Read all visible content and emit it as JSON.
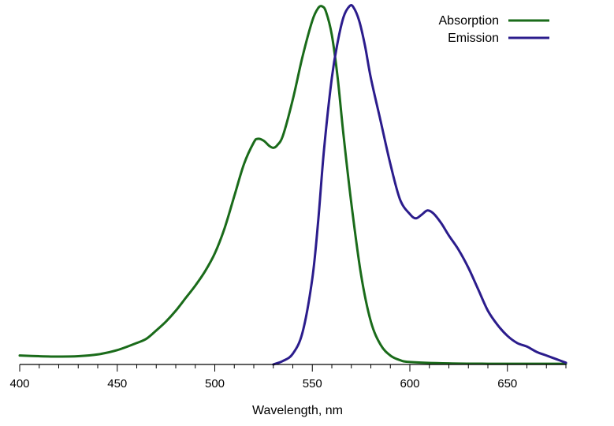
{
  "chart_data": {
    "type": "line",
    "title": "",
    "xlabel": "Wavelength, nm",
    "ylabel": "",
    "xlim": [
      400,
      680
    ],
    "ylim": [
      0,
      1
    ],
    "x_ticks": [
      400,
      450,
      500,
      550,
      600,
      650
    ],
    "x_minor_step": 10,
    "y_axis_visible": false,
    "grid": false,
    "legend_position": "top-right",
    "series": [
      {
        "name": "Absorption",
        "color": "#1a6b1a",
        "points": [
          [
            400,
            0.025
          ],
          [
            410,
            0.023
          ],
          [
            420,
            0.022
          ],
          [
            430,
            0.023
          ],
          [
            440,
            0.028
          ],
          [
            450,
            0.04
          ],
          [
            460,
            0.06
          ],
          [
            465,
            0.072
          ],
          [
            470,
            0.095
          ],
          [
            475,
            0.12
          ],
          [
            480,
            0.15
          ],
          [
            485,
            0.185
          ],
          [
            490,
            0.22
          ],
          [
            495,
            0.26
          ],
          [
            500,
            0.31
          ],
          [
            505,
            0.38
          ],
          [
            510,
            0.47
          ],
          [
            515,
            0.56
          ],
          [
            520,
            0.62
          ],
          [
            522,
            0.63
          ],
          [
            525,
            0.625
          ],
          [
            528,
            0.61
          ],
          [
            530,
            0.605
          ],
          [
            532,
            0.612
          ],
          [
            535,
            0.64
          ],
          [
            540,
            0.74
          ],
          [
            545,
            0.86
          ],
          [
            550,
            0.96
          ],
          [
            553,
            0.995
          ],
          [
            555,
            1.0
          ],
          [
            557,
            0.985
          ],
          [
            560,
            0.92
          ],
          [
            563,
            0.8
          ],
          [
            566,
            0.64
          ],
          [
            570,
            0.45
          ],
          [
            575,
            0.25
          ],
          [
            580,
            0.12
          ],
          [
            585,
            0.055
          ],
          [
            590,
            0.025
          ],
          [
            595,
            0.012
          ],
          [
            600,
            0.007
          ],
          [
            620,
            0.003
          ],
          [
            640,
            0.002
          ],
          [
            660,
            0.002
          ],
          [
            680,
            0.002
          ]
        ]
      },
      {
        "name": "Emission",
        "color": "#2b1c8c",
        "points": [
          [
            530,
            0.0
          ],
          [
            535,
            0.01
          ],
          [
            540,
            0.03
          ],
          [
            545,
            0.09
          ],
          [
            550,
            0.24
          ],
          [
            553,
            0.4
          ],
          [
            556,
            0.6
          ],
          [
            560,
            0.8
          ],
          [
            563,
            0.9
          ],
          [
            566,
            0.97
          ],
          [
            569,
            1.0
          ],
          [
            571,
            0.998
          ],
          [
            574,
            0.96
          ],
          [
            577,
            0.89
          ],
          [
            580,
            0.8
          ],
          [
            585,
            0.68
          ],
          [
            590,
            0.56
          ],
          [
            595,
            0.46
          ],
          [
            600,
            0.42
          ],
          [
            603,
            0.408
          ],
          [
            606,
            0.418
          ],
          [
            609,
            0.43
          ],
          [
            612,
            0.422
          ],
          [
            616,
            0.395
          ],
          [
            620,
            0.36
          ],
          [
            625,
            0.32
          ],
          [
            630,
            0.27
          ],
          [
            635,
            0.21
          ],
          [
            640,
            0.15
          ],
          [
            645,
            0.11
          ],
          [
            650,
            0.08
          ],
          [
            655,
            0.06
          ],
          [
            660,
            0.05
          ],
          [
            665,
            0.035
          ],
          [
            670,
            0.025
          ],
          [
            675,
            0.015
          ],
          [
            680,
            0.005
          ]
        ]
      }
    ]
  }
}
